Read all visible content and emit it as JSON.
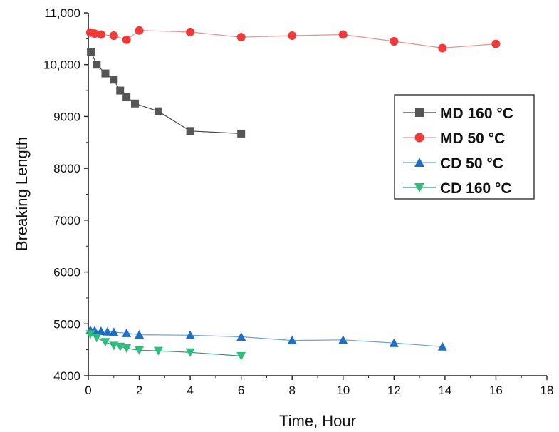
{
  "chart_data": {
    "type": "line",
    "title": "",
    "xlabel": "Time, Hour",
    "ylabel": "Breaking Length",
    "xlim": [
      0,
      18
    ],
    "ylim": [
      4000,
      11000
    ],
    "x_ticks": [
      0,
      2,
      4,
      6,
      8,
      10,
      12,
      14,
      16,
      18
    ],
    "x_tick_labels": [
      "0",
      "2",
      "4",
      "6",
      "8",
      "10",
      "12",
      "14",
      "16",
      "18"
    ],
    "y_ticks": [
      4000,
      5000,
      6000,
      7000,
      8000,
      9000,
      10000,
      11000
    ],
    "y_tick_labels": [
      "4000",
      "5000",
      "6000",
      "7000",
      "8000",
      "9000",
      "10,000",
      "11,000"
    ],
    "grid": false,
    "legend_position": "right",
    "series": [
      {
        "name": "MD 160 °C",
        "marker": "square",
        "color": "#555555",
        "line_color": "#444444",
        "x": [
          0.1,
          0.33,
          0.67,
          1.0,
          1.25,
          1.5,
          1.83,
          2.75,
          4.0,
          6.0
        ],
        "y": [
          10250,
          10000,
          9830,
          9710,
          9500,
          9380,
          9250,
          9100,
          8720,
          8670
        ]
      },
      {
        "name": "MD 50 °C",
        "marker": "circle",
        "color": "#f03a3a",
        "line_color": "#e89090",
        "x": [
          0.08,
          0.25,
          0.5,
          1.0,
          1.5,
          2.0,
          4.0,
          6.0,
          8.0,
          10.0,
          12.0,
          13.9,
          16.0
        ],
        "y": [
          10620,
          10600,
          10580,
          10560,
          10480,
          10660,
          10630,
          10530,
          10560,
          10580,
          10450,
          10320,
          10400
        ]
      },
      {
        "name": "CD 50 °C",
        "marker": "triangle-up",
        "color": "#1e6fc4",
        "line_color": "#6a9fd6",
        "x": [
          0.08,
          0.25,
          0.5,
          0.75,
          1.0,
          1.5,
          2.0,
          4.0,
          6.0,
          8.0,
          10.0,
          12.0,
          13.9
        ],
        "y": [
          4880,
          4870,
          4860,
          4850,
          4840,
          4820,
          4790,
          4780,
          4750,
          4680,
          4690,
          4630,
          4560
        ]
      },
      {
        "name": "CD 160 °C",
        "marker": "triangle-down",
        "color": "#2ebd7a",
        "line_color": "#2a9a7a",
        "x": [
          0.08,
          0.33,
          0.67,
          1.0,
          1.25,
          1.5,
          2.0,
          2.75,
          4.0,
          6.0
        ],
        "y": [
          4800,
          4730,
          4650,
          4580,
          4560,
          4530,
          4490,
          4480,
          4450,
          4380
        ]
      }
    ]
  }
}
